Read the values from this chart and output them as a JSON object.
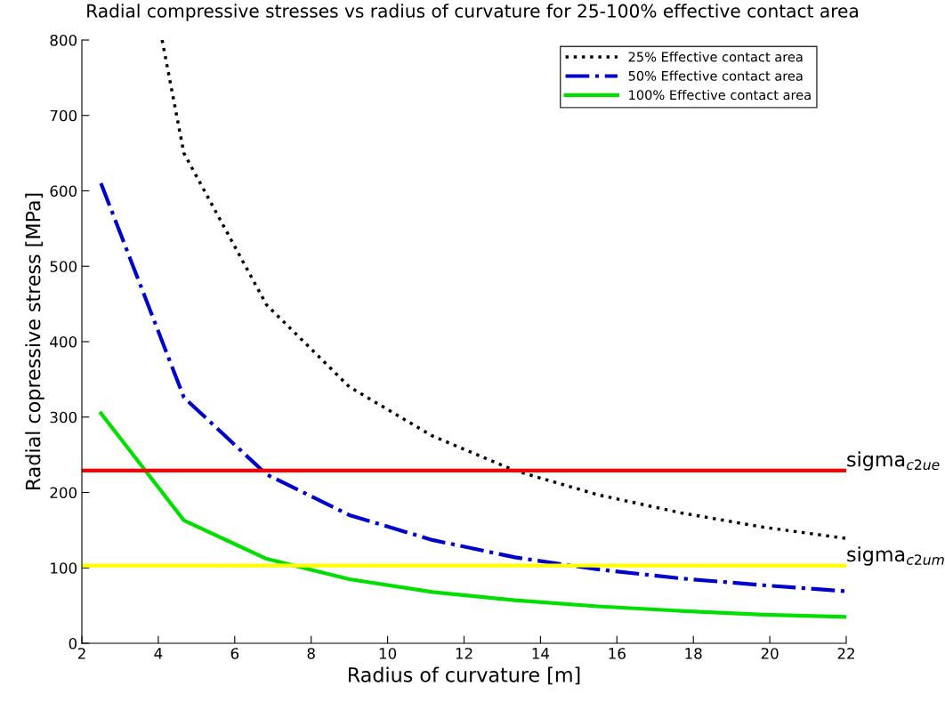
{
  "chart_data": {
    "type": "line",
    "title": "Radial compressive stresses vs radius of curvature for 25-100% effective contact area",
    "xlabel": "Radius of curvature [m]",
    "ylabel": "Radial copressive stress [MPa]",
    "x": [
      2.5,
      4.67,
      6.83,
      9,
      11.17,
      13.33,
      15.5,
      17.67,
      19.83,
      22
    ],
    "series": [
      {
        "name": "25% Effective contact area",
        "color": "#000000",
        "line_style": "dotted",
        "x": [
          4.1,
          4.67,
          6.83,
          9,
          11.17,
          13.33,
          15.5,
          17.67,
          19.83,
          22
        ],
        "values": [
          800,
          650,
          449,
          340,
          275,
          229,
          197,
          173,
          154,
          139
        ]
      },
      {
        "name": "50% Effective contact area",
        "color": "#0000cc",
        "line_style": "dashdot",
        "values": [
          610,
          326,
          224,
          170,
          137,
          114,
          98,
          86,
          77,
          69
        ]
      },
      {
        "name": "100% Effective contact area",
        "color": "#00e000",
        "line_style": "solid",
        "values": [
          305,
          163,
          112,
          85,
          68,
          57,
          49,
          43,
          38,
          35
        ]
      }
    ],
    "ref_lines": [
      {
        "axis": "y",
        "value": 229,
        "label": "sigma$_{c2ue}$",
        "color": "#ff0000"
      },
      {
        "axis": "y",
        "value": 103,
        "label": "sigma$_{c2um}$",
        "color": "#ffff00"
      }
    ],
    "xlim": [
      2,
      22
    ],
    "xticks": [
      2,
      4,
      6,
      8,
      10,
      12,
      14,
      16,
      18,
      20,
      22
    ],
    "ylim": [
      0,
      800
    ],
    "yticks": [
      0,
      100,
      200,
      300,
      400,
      500,
      600,
      700,
      800
    ],
    "grid": false,
    "legend": "top right"
  }
}
